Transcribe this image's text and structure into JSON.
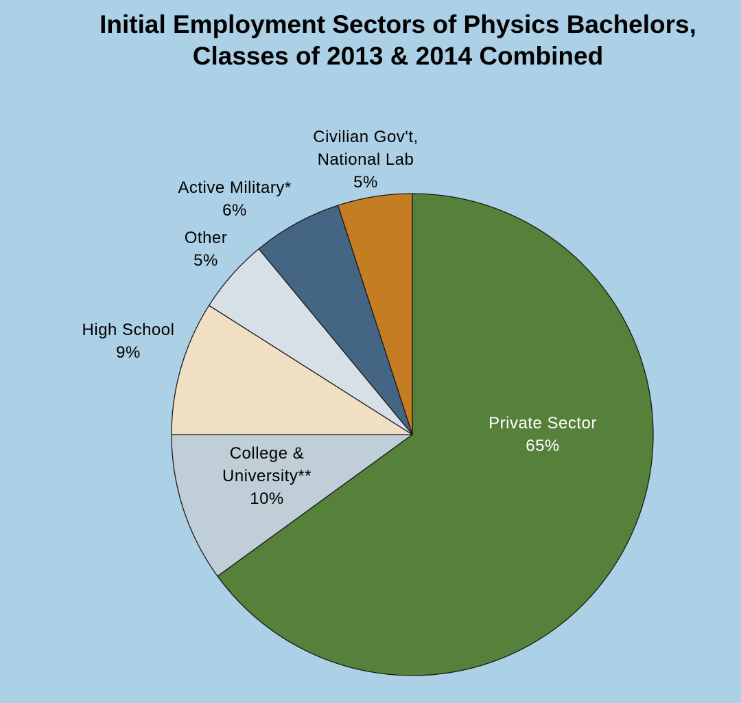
{
  "chart_data": {
    "type": "pie",
    "title_line1": "Initial Employment Sectors of Physics Bachelors,",
    "title_line2": "Classes of 2013 & 2014 Combined",
    "start_angle_deg": 0,
    "direction": "clockwise",
    "slices": [
      {
        "name": "Private Sector",
        "label_lines": [
          "Private Sector"
        ],
        "value_label": "65%",
        "value": 65,
        "color": "#56813a",
        "text_color": "#ffffff"
      },
      {
        "name": "College & University**",
        "label_lines": [
          "College &",
          "University**"
        ],
        "value_label": "10%",
        "value": 10,
        "color": "#c0ced8",
        "text_color": "#000000"
      },
      {
        "name": "High School",
        "label_lines": [
          "High School"
        ],
        "value_label": "9%",
        "value": 9,
        "color": "#f1dfc3",
        "text_color": "#000000"
      },
      {
        "name": "Other",
        "label_lines": [
          "Other"
        ],
        "value_label": "5%",
        "value": 5,
        "color": "#d8e0e7",
        "text_color": "#000000"
      },
      {
        "name": "Active Military*",
        "label_lines": [
          "Active Military*"
        ],
        "value_label": "6%",
        "value": 6,
        "color": "#446584",
        "text_color": "#000000"
      },
      {
        "name": "Civilian Gov't, National Lab",
        "label_lines": [
          "Civilian Gov't,",
          "National Lab"
        ],
        "value_label": "5%",
        "value": 5,
        "color": "#c47d22",
        "text_color": "#000000"
      }
    ]
  }
}
